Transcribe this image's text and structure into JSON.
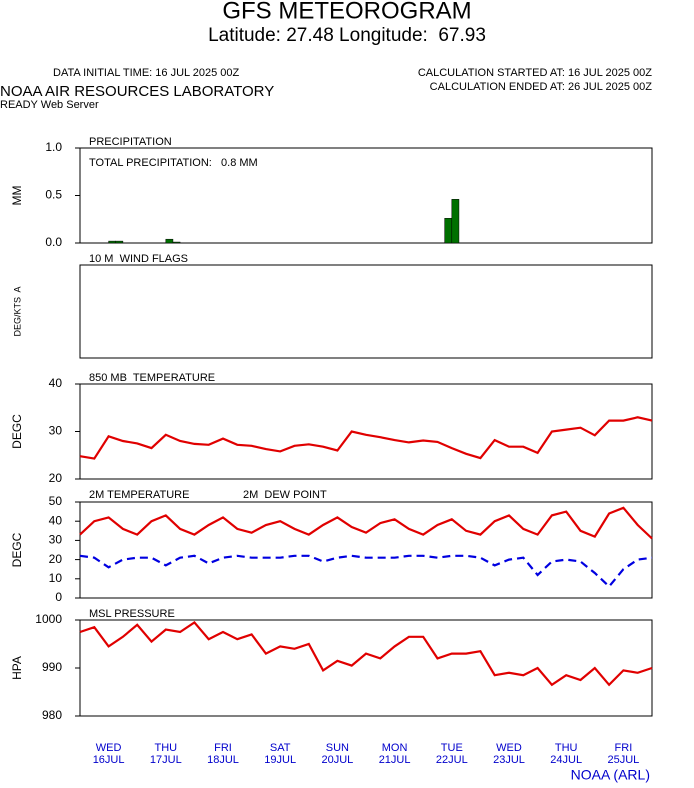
{
  "header": {
    "title": "GFS METEOROGRAM",
    "subtitle": "Latitude: 27.48 Longitude:  67.93",
    "initial_time": "DATA INITIAL TIME: 16 JUL 2025 00Z",
    "calc_started": "CALCULATION STARTED AT: 16 JUL 2025 00Z",
    "calc_ended": "CALCULATION ENDED AT: 26 JUL 2025 00Z",
    "lab": "NOAA AIR RESOURCES LABORATORY",
    "server": "READY Web Server"
  },
  "chart_data": [
    {
      "type": "bar",
      "title": "PRECIPITATION",
      "annotation": "TOTAL PRECIPITATION:   0.8 MM",
      "ylabel": "MM",
      "xlim": [
        0,
        240
      ],
      "ylim": [
        0,
        1
      ],
      "yticks": [
        {
          "value": 0,
          "label": "0.0"
        },
        {
          "value": 0.5,
          "label": "0.5"
        },
        {
          "value": 1,
          "label": "1.0"
        }
      ],
      "color": "#007000",
      "x": [
        15,
        18,
        39,
        42,
        156,
        159
      ],
      "values": [
        0.02,
        0.02,
        0.04,
        0.01,
        0.26,
        0.46
      ]
    },
    {
      "type": "wind",
      "title": "10 M  WIND FLAGS",
      "ylabel": "DEG/KTS  A",
      "xlim": [
        0,
        240
      ]
    },
    {
      "type": "line",
      "title": "850 MB  TEMPERATURE",
      "ylabel": "DEGC",
      "xlim": [
        0,
        240
      ],
      "ylim": [
        20,
        40
      ],
      "yticks": [
        20,
        30,
        40
      ],
      "x": [
        0,
        6,
        12,
        18,
        24,
        30,
        36,
        42,
        48,
        54,
        60,
        66,
        72,
        78,
        84,
        90,
        96,
        102,
        108,
        114,
        120,
        126,
        132,
        138,
        144,
        150,
        156,
        162,
        168,
        174,
        180,
        186,
        192,
        198,
        204,
        210,
        216,
        222,
        228,
        234,
        240
      ],
      "series": [
        {
          "color": "#e00000",
          "dash": false,
          "values": [
            24.8,
            24.3,
            29,
            28,
            27.5,
            26.5,
            29.3,
            28,
            27.4,
            27.2,
            28.5,
            27.2,
            27,
            26.3,
            25.8,
            27,
            27.3,
            26.8,
            26,
            30,
            29.3,
            28.8,
            28.2,
            27.7,
            28.1,
            27.8,
            26.5,
            25.3,
            24.4,
            28.2,
            26.8,
            26.8,
            25.5,
            30,
            30.4,
            30.8,
            29.2,
            32.3,
            32.3,
            33,
            32.3
          ]
        }
      ]
    },
    {
      "type": "line",
      "ylabel": "DEGC",
      "xlim": [
        0,
        240
      ],
      "ylim": [
        0,
        50
      ],
      "yticks": [
        0,
        10,
        20,
        30,
        40,
        50
      ],
      "x": [
        0,
        6,
        12,
        18,
        24,
        30,
        36,
        42,
        48,
        54,
        60,
        66,
        72,
        78,
        84,
        90,
        96,
        102,
        108,
        114,
        120,
        126,
        132,
        138,
        144,
        150,
        156,
        162,
        168,
        174,
        180,
        186,
        192,
        198,
        204,
        210,
        216,
        222,
        228,
        234,
        240
      ],
      "series": [
        {
          "name": "2M TEMPERATURE",
          "color": "#e00000",
          "dash": false,
          "values": [
            33,
            40,
            42,
            36,
            33,
            40,
            43,
            36,
            33,
            38,
            42,
            36,
            34,
            38,
            40,
            36,
            33,
            38,
            42,
            37,
            34,
            39,
            41,
            36,
            33,
            38,
            41,
            35,
            33,
            40,
            43,
            36,
            33,
            43,
            45,
            35,
            32,
            44,
            47,
            38,
            31
          ]
        },
        {
          "name": "2M  DEW POINT",
          "color": "#0000e0",
          "dash": true,
          "values": [
            22,
            21,
            16,
            20,
            21,
            21,
            17,
            21,
            22,
            18,
            21,
            22,
            21,
            21,
            21,
            22,
            22,
            19,
            21,
            22,
            21,
            21,
            21,
            22,
            22,
            21,
            22,
            22,
            21,
            17,
            20,
            21,
            12,
            19,
            20,
            19,
            13,
            6,
            15,
            20,
            21
          ]
        }
      ]
    },
    {
      "type": "line",
      "title": "MSL PRESSURE",
      "ylabel": "HPA",
      "xlim": [
        0,
        240
      ],
      "ylim": [
        980,
        1000
      ],
      "yticks": [
        980,
        990,
        1000
      ],
      "x": [
        0,
        6,
        12,
        18,
        24,
        30,
        36,
        42,
        48,
        54,
        60,
        66,
        72,
        78,
        84,
        90,
        96,
        102,
        108,
        114,
        120,
        126,
        132,
        138,
        144,
        150,
        156,
        162,
        168,
        174,
        180,
        186,
        192,
        198,
        204,
        210,
        216,
        222,
        228,
        234,
        240
      ],
      "series": [
        {
          "color": "#e00000",
          "dash": false,
          "values": [
            997.5,
            998.5,
            994.5,
            996.5,
            999,
            995.5,
            998,
            997.5,
            999.5,
            996,
            997.5,
            996,
            997,
            993,
            994.5,
            994,
            995,
            989.5,
            991.5,
            990.5,
            993,
            992,
            994.5,
            996.5,
            996.5,
            992,
            993,
            993,
            993.5,
            988.5,
            989,
            988.5,
            990,
            986.5,
            988.5,
            987.5,
            990,
            986.5,
            989.5,
            989,
            990
          ]
        }
      ]
    }
  ],
  "x_axis": {
    "days": [
      {
        "day": "WED",
        "date": "16JUL"
      },
      {
        "day": "THU",
        "date": "17JUL"
      },
      {
        "day": "FRI",
        "date": "18JUL"
      },
      {
        "day": "SAT",
        "date": "19JUL"
      },
      {
        "day": "SUN",
        "date": "20JUL"
      },
      {
        "day": "MON",
        "date": "21JUL"
      },
      {
        "day": "TUE",
        "date": "22JUL"
      },
      {
        "day": "WED",
        "date": "23JUL"
      },
      {
        "day": "THU",
        "date": "24JUL"
      },
      {
        "day": "FRI",
        "date": "25JUL"
      }
    ],
    "footer": "NOAA (ARL)"
  }
}
